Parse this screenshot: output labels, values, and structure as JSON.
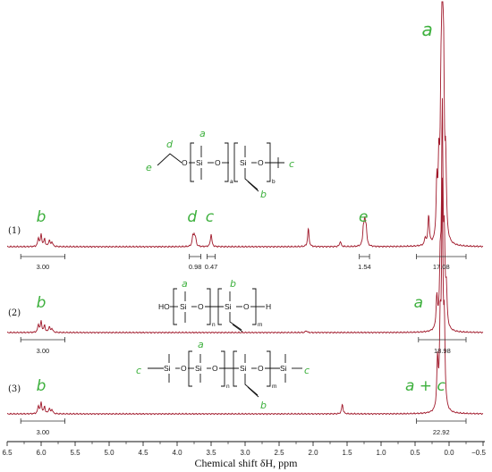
{
  "chart_data": {
    "type": "line",
    "xlabel": "Chemical shift δH, ppm",
    "xlim": [
      6.5,
      -0.5
    ],
    "x_ticks": [
      "6.5",
      "6.0",
      "5.5",
      "5.0",
      "4.5",
      "4.0",
      "3.5",
      "3.0",
      "2.5",
      "2.0",
      "1.5",
      "1.0",
      "0.5",
      "0.0",
      "−0.5"
    ],
    "x_tick_values": [
      6.5,
      6.0,
      5.5,
      5.0,
      4.5,
      4.0,
      3.5,
      3.0,
      2.5,
      2.0,
      1.5,
      1.0,
      0.5,
      0.0,
      -0.5
    ],
    "grid": false,
    "line_color": "#a0182a",
    "series": [
      {
        "name": "(1)",
        "peaks": [
          {
            "x": 6.0,
            "h": 0.55
          },
          {
            "x": 6.04,
            "h": 0.4
          },
          {
            "x": 5.95,
            "h": 0.35
          },
          {
            "x": 5.88,
            "h": 0.3
          },
          {
            "x": 5.84,
            "h": 0.22
          },
          {
            "x": 3.77,
            "h": 0.4
          },
          {
            "x": 3.75,
            "h": 0.45
          },
          {
            "x": 3.73,
            "h": 0.35
          },
          {
            "x": 3.5,
            "h": 0.6
          },
          {
            "x": 2.07,
            "h": 0.85
          },
          {
            "x": 1.6,
            "h": 0.25
          },
          {
            "x": 1.26,
            "h": 0.75
          },
          {
            "x": 1.24,
            "h": 1.0
          },
          {
            "x": 1.22,
            "h": 0.8
          },
          {
            "x": 0.35,
            "h": 0.35
          },
          {
            "x": 0.3,
            "h": 1.4
          },
          {
            "x": 0.18,
            "h": 2.6
          },
          {
            "x": 0.15,
            "h": 3.3
          },
          {
            "x": 0.12,
            "h": 5.0
          },
          {
            "x": 0.1,
            "h": 11.2
          },
          {
            "x": 0.08,
            "h": 6.5
          },
          {
            "x": 0.05,
            "h": 3.4
          }
        ],
        "integrals": [
          {
            "from": 6.3,
            "to": 5.65,
            "label": "3.00"
          },
          {
            "from": 3.82,
            "to": 3.65,
            "label": "0.98"
          },
          {
            "from": 3.56,
            "to": 3.44,
            "label": "0.47"
          },
          {
            "from": 1.32,
            "to": 1.17,
            "label": "1.54"
          },
          {
            "from": 0.48,
            "to": -0.25,
            "label": "17.08"
          }
        ],
        "annotations": [
          {
            "text": "b",
            "x": 6.0,
            "pos": "above"
          },
          {
            "text": "d",
            "x": 3.78,
            "pos": "above"
          },
          {
            "text": "c",
            "x": 3.52,
            "pos": "above"
          },
          {
            "text": "e",
            "x": 1.26,
            "pos": "above"
          },
          {
            "text": "a",
            "x": 0.32,
            "pos": "top"
          }
        ]
      },
      {
        "name": "(2)",
        "peaks": [
          {
            "x": 6.0,
            "h": 0.55
          },
          {
            "x": 6.04,
            "h": 0.4
          },
          {
            "x": 5.95,
            "h": 0.35
          },
          {
            "x": 5.88,
            "h": 0.3
          },
          {
            "x": 5.84,
            "h": 0.2
          },
          {
            "x": 2.1,
            "h": 0.1
          },
          {
            "x": 0.18,
            "h": 1.6
          },
          {
            "x": 0.13,
            "h": 3.0
          },
          {
            "x": 0.1,
            "h": 11.0
          },
          {
            "x": 0.07,
            "h": 4.0
          },
          {
            "x": 0.04,
            "h": 1.8
          }
        ],
        "integrals": [
          {
            "from": 6.3,
            "to": 5.65,
            "label": "3.00"
          },
          {
            "from": 0.45,
            "to": -0.25,
            "label": "18.98"
          }
        ],
        "annotations": [
          {
            "text": "b",
            "x": 6.0,
            "pos": "above"
          },
          {
            "text": "a",
            "x": 0.45,
            "pos": "above"
          }
        ]
      },
      {
        "name": "(3)",
        "peaks": [
          {
            "x": 6.0,
            "h": 0.55
          },
          {
            "x": 6.04,
            "h": 0.4
          },
          {
            "x": 5.95,
            "h": 0.35
          },
          {
            "x": 5.88,
            "h": 0.28
          },
          {
            "x": 5.84,
            "h": 0.22
          },
          {
            "x": 1.57,
            "h": 0.5
          },
          {
            "x": 0.17,
            "h": 2.5
          },
          {
            "x": 0.13,
            "h": 4.0
          },
          {
            "x": 0.1,
            "h": 11.0
          },
          {
            "x": 0.07,
            "h": 4.0
          }
        ],
        "integrals": [
          {
            "from": 6.3,
            "to": 5.65,
            "label": "3.00"
          },
          {
            "from": 0.48,
            "to": -0.25,
            "label": "22.92"
          }
        ],
        "annotations": [
          {
            "text": "b",
            "x": 6.0,
            "pos": "above"
          },
          {
            "text": "a + c",
            "x": 0.35,
            "pos": "above"
          }
        ]
      }
    ]
  },
  "structures": {
    "s1": {
      "labels": {
        "a": "a",
        "b": "b",
        "c": "c",
        "d": "d",
        "e": "e"
      },
      "atoms": {
        "O1": "O",
        "Si1": "Si",
        "O2": "O",
        "Si2": "Si",
        "O3": "O"
      },
      "subs": {
        "a": "a",
        "b": "b"
      }
    },
    "s2": {
      "labels": {
        "a": "a",
        "b": "b"
      },
      "atoms": {
        "HO": "HO",
        "Si1": "Si",
        "O1": "O",
        "Si2": "Si",
        "O2": "O",
        "H": "H"
      },
      "subs": {
        "n": "n",
        "m": "m"
      }
    },
    "s3": {
      "labels": {
        "a": "a",
        "b": "b",
        "c1": "c",
        "c2": "c"
      },
      "atoms": {
        "Si1": "Si",
        "O1": "O",
        "Si2": "Si",
        "O2": "O",
        "Si3": "Si",
        "O3": "O",
        "Si4": "Si"
      },
      "subs": {
        "n": "n",
        "m": "m"
      }
    }
  }
}
